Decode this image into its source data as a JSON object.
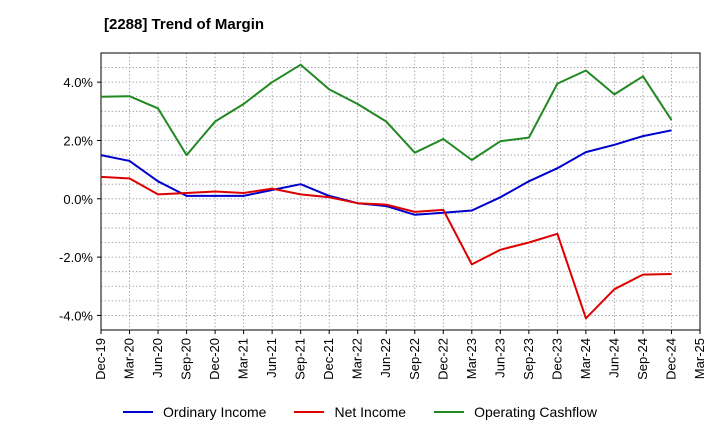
{
  "header": {
    "title": "[2288]  Trend of Margin"
  },
  "colors": {
    "ordinary": "#0000cc",
    "net": "#dd0000",
    "cashflow": "#228822"
  },
  "chart_data": {
    "type": "line",
    "title": "[2288]  Trend of Margin",
    "x": [
      "Dec-19",
      "Mar-20",
      "Jun-20",
      "Sep-20",
      "Dec-20",
      "Mar-21",
      "Jun-21",
      "Sep-21",
      "Dec-21",
      "Mar-22",
      "Jun-22",
      "Sep-22",
      "Dec-22",
      "Mar-23",
      "Jun-23",
      "Sep-23",
      "Dec-23",
      "Mar-24",
      "Jun-24",
      "Sep-24",
      "Dec-24",
      "Mar-25"
    ],
    "ylim": [
      -4.5,
      5.0
    ],
    "yticks": [
      -4,
      -2,
      0,
      2,
      4
    ],
    "ytick_labels": [
      "-4.0%",
      "-2.0%",
      "0.0%",
      "2.0%",
      "4.0%"
    ],
    "grid": true,
    "legend_position": "bottom",
    "series": [
      {
        "name": "Ordinary Income",
        "color": "#0000cc",
        "values": [
          1.5,
          1.3,
          0.6,
          0.1,
          0.1,
          0.1,
          0.3,
          0.5,
          0.1,
          -0.15,
          -0.25,
          -0.55,
          -0.48,
          -0.4,
          0.05,
          0.6,
          1.05,
          1.6,
          1.85,
          2.15,
          2.35,
          null
        ]
      },
      {
        "name": "Net Income",
        "color": "#dd0000",
        "values": [
          0.75,
          0.7,
          0.15,
          0.2,
          0.25,
          0.2,
          0.35,
          0.15,
          0.05,
          -0.15,
          -0.2,
          -0.45,
          -0.38,
          -2.25,
          -1.75,
          -1.5,
          -1.2,
          -4.1,
          -3.1,
          -2.6,
          -2.58,
          null
        ]
      },
      {
        "name": "Operating Cashflow",
        "color": "#228822",
        "values": [
          3.5,
          3.52,
          3.1,
          1.5,
          2.65,
          3.25,
          4.0,
          4.6,
          3.75,
          3.25,
          2.65,
          1.58,
          2.05,
          1.33,
          1.97,
          2.1,
          3.95,
          4.4,
          3.58,
          4.2,
          2.7,
          null
        ]
      }
    ]
  }
}
